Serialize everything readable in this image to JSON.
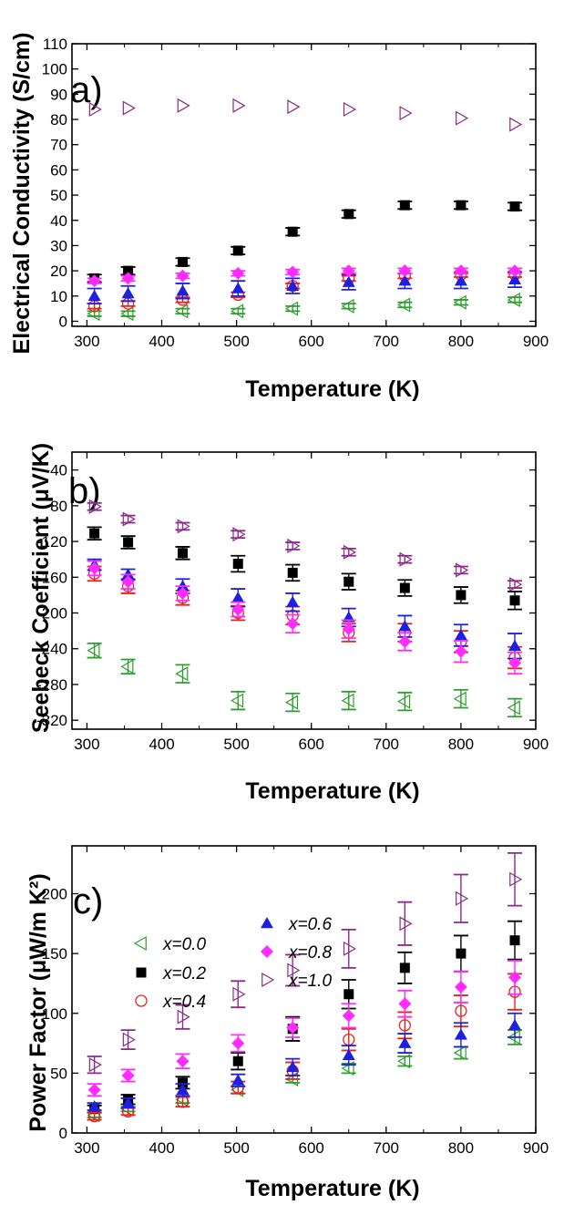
{
  "figure": {
    "legend": [
      {
        "label": "x=0.0",
        "marker": "tri-left-open",
        "color": "#2e9e2e"
      },
      {
        "label": "x=0.2",
        "marker": "square-filled",
        "color": "#000000"
      },
      {
        "label": "x=0.4",
        "marker": "circle-open",
        "color": "#e8231f"
      },
      {
        "label": "x=0.6",
        "marker": "tri-up-filled",
        "color": "#1f1fe0"
      },
      {
        "label": "x=0.8",
        "marker": "diamond-filled",
        "color": "#ff2bff"
      },
      {
        "label": "x=1.0",
        "marker": "tri-right-open",
        "color": "#8a2b8a"
      }
    ]
  },
  "chart_data": [
    {
      "type": "scatter",
      "panel_label": "a)",
      "xlabel": "Temperature (K)",
      "ylabel": "Electrical Conductivity (S/cm)",
      "xlim": [
        280,
        900
      ],
      "ylim": [
        -2,
        110
      ],
      "xticks": [
        300,
        400,
        500,
        600,
        700,
        800,
        900
      ],
      "yticks": [
        0,
        10,
        20,
        30,
        40,
        50,
        60,
        70,
        80,
        90,
        100,
        110
      ],
      "x": [
        310,
        355,
        428,
        502,
        575,
        650,
        725,
        800,
        872
      ],
      "series": [
        {
          "name": "x=0.0",
          "values": [
            3,
            3,
            4,
            4,
            5,
            6,
            6.5,
            7.5,
            8.5
          ],
          "err": [
            1,
            1,
            1,
            1,
            1,
            1,
            1,
            1,
            1
          ]
        },
        {
          "name": "x=0.2",
          "values": [
            17,
            20,
            23.5,
            28,
            35.5,
            42.5,
            46,
            46,
            45.5
          ],
          "err": [
            1.5,
            1.5,
            1.5,
            1.5,
            1.5,
            1.5,
            1.5,
            1.5,
            1.5
          ]
        },
        {
          "name": "x=0.4",
          "values": [
            6,
            7,
            8.5,
            10.5,
            14,
            17,
            18,
            18.5,
            18.5
          ],
          "err": [
            1,
            1,
            1,
            1,
            1,
            1,
            1,
            1,
            1
          ]
        },
        {
          "name": "x=0.6",
          "values": [
            10,
            11,
            12,
            13,
            14,
            15.5,
            16,
            16,
            16.5
          ],
          "err": [
            3,
            3,
            3,
            3,
            3,
            3,
            3,
            3,
            3
          ]
        },
        {
          "name": "x=0.8",
          "values": [
            16,
            17,
            18,
            19,
            19.5,
            20,
            20,
            20,
            20
          ],
          "err": [
            1,
            1,
            1,
            1,
            1,
            1,
            1,
            1,
            1
          ]
        },
        {
          "name": "x=1.0",
          "values": [
            84,
            84.5,
            85.5,
            85.5,
            85,
            84,
            82.5,
            80.5,
            78
          ],
          "err": [
            0,
            0,
            0,
            0,
            0,
            0,
            0,
            0,
            0
          ]
        }
      ]
    },
    {
      "type": "scatter",
      "panel_label": "b)",
      "xlabel": "Temperature (K)",
      "ylabel": "Seebeck Coefficient (μV/K)",
      "xlim": [
        280,
        900
      ],
      "ylim": [
        -330,
        -20
      ],
      "xticks": [
        300,
        400,
        500,
        600,
        700,
        800,
        900
      ],
      "yticks": [
        -40,
        -80,
        -120,
        -160,
        -200,
        -240,
        -280,
        -320
      ],
      "x": [
        310,
        355,
        428,
        502,
        575,
        650,
        725,
        800,
        872
      ],
      "series": [
        {
          "name": "x=0.0",
          "values": [
            -242,
            -260,
            -268,
            -298,
            -300,
            -298,
            -299,
            -296,
            -306
          ],
          "err": [
            8,
            8,
            10,
            10,
            10,
            10,
            10,
            10,
            10
          ]
        },
        {
          "name": "x=0.2",
          "values": [
            -111,
            -121,
            -133,
            -145,
            -155,
            -165,
            -172,
            -180,
            -186
          ],
          "err": [
            7,
            7,
            7,
            9,
            9,
            9,
            9,
            9,
            10
          ]
        },
        {
          "name": "x=0.4",
          "values": [
            -156,
            -170,
            -183,
            -200,
            -203,
            -222,
            -222,
            -232,
            -250
          ],
          "err": [
            8,
            8,
            8,
            8,
            10,
            10,
            10,
            12,
            12
          ]
        },
        {
          "name": "x=0.6",
          "values": [
            -146,
            -157,
            -170,
            -183,
            -188,
            -205,
            -215,
            -225,
            -237
          ],
          "err": [
            6,
            6,
            8,
            10,
            10,
            10,
            12,
            12,
            14
          ]
        },
        {
          "name": "x=0.8",
          "values": [
            -150,
            -165,
            -178,
            -196,
            -212,
            -218,
            -232,
            -243,
            -256
          ],
          "err": [
            8,
            8,
            8,
            8,
            10,
            10,
            10,
            12,
            12
          ]
        },
        {
          "name": "x=1.0",
          "values": [
            -81,
            -95,
            -103,
            -112,
            -125,
            -132,
            -140,
            -152,
            -168
          ],
          "err": [
            4,
            4,
            4,
            4,
            4,
            4,
            4,
            4,
            4
          ]
        }
      ]
    },
    {
      "type": "scatter",
      "panel_label": "c)",
      "xlabel": "Temperature (K)",
      "ylabel": "Power Factor (μW/m K²)",
      "xlim": [
        280,
        900
      ],
      "ylim": [
        0,
        240
      ],
      "xticks": [
        300,
        400,
        500,
        600,
        700,
        800,
        900
      ],
      "yticks": [
        0,
        50,
        100,
        150,
        200
      ],
      "x": [
        310,
        355,
        428,
        502,
        575,
        650,
        725,
        800,
        872
      ],
      "series": [
        {
          "name": "x=0.0",
          "values": [
            15,
            20,
            28,
            36,
            45,
            54,
            60,
            67,
            80
          ],
          "err": [
            2,
            2,
            3,
            3,
            3,
            4,
            4,
            5,
            6
          ]
        },
        {
          "name": "x=0.2",
          "values": [
            20,
            28,
            42,
            60,
            87,
            116,
            138,
            150,
            161
          ],
          "err": [
            3,
            4,
            5,
            7,
            10,
            12,
            13,
            15,
            16
          ]
        },
        {
          "name": "x=0.4",
          "values": [
            14,
            18,
            26,
            38,
            52,
            78,
            90,
            102,
            118
          ],
          "err": [
            3,
            3,
            4,
            5,
            7,
            9,
            11,
            13,
            15
          ]
        },
        {
          "name": "x=0.6",
          "values": [
            22,
            25,
            36,
            44,
            55,
            65,
            75,
            82,
            90
          ],
          "err": [
            3,
            4,
            5,
            5,
            7,
            8,
            8,
            10,
            10
          ]
        },
        {
          "name": "x=0.8",
          "values": [
            36,
            48,
            60,
            75,
            88,
            98,
            108,
            122,
            130
          ],
          "err": [
            5,
            5,
            6,
            7,
            8,
            10,
            11,
            13,
            14
          ]
        },
        {
          "name": "x=1.0",
          "values": [
            57,
            78,
            97,
            116,
            136,
            154,
            175,
            196,
            212
          ],
          "err": [
            7,
            8,
            10,
            11,
            13,
            16,
            18,
            20,
            22
          ]
        }
      ]
    }
  ]
}
